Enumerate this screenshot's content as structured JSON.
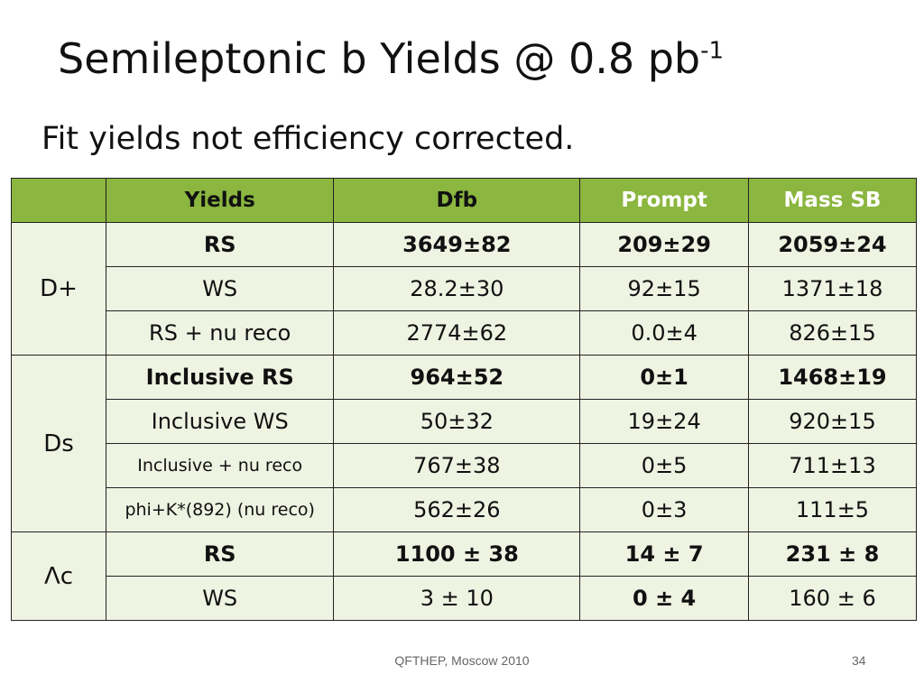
{
  "header": {
    "title": "Semileptonic b Yields @ 0.8 pb",
    "title_superscript": "-1",
    "subtitle": "Fit yields not efficiency corrected."
  },
  "table": {
    "columns": [
      "Yields",
      "Dfb",
      "Prompt",
      "Mass SB"
    ],
    "groups": [
      {
        "label": "D+",
        "rows": [
          [
            "RS",
            "3649±82",
            "209±29",
            "2059±24"
          ],
          [
            "WS",
            "28.2±30",
            "92±15",
            "1371±18"
          ],
          [
            "RS + nu reco",
            "2774±62",
            "0.0±4",
            "826±15"
          ]
        ]
      },
      {
        "label": "Ds",
        "rows": [
          [
            "Inclusive RS",
            "964±52",
            "0±1",
            "1468±19"
          ],
          [
            "Inclusive WS",
            "50±32",
            "19±24",
            "920±15"
          ],
          [
            "Inclusive + nu reco",
            "767±38",
            "0±5",
            "711±13"
          ],
          [
            "phi+K*(892) (nu reco)",
            "562±26",
            "0±3",
            "111±5"
          ]
        ]
      },
      {
        "label": "Λc",
        "rows": [
          [
            "RS",
            "1100 ± 38",
            "14 ± 7",
            "231 ± 8"
          ],
          [
            "WS",
            "3 ± 10",
            "0 ± 4",
            "160 ± 6"
          ]
        ]
      }
    ]
  },
  "footer": {
    "text": "QFTHEP, Moscow 2010",
    "page": "34"
  }
}
